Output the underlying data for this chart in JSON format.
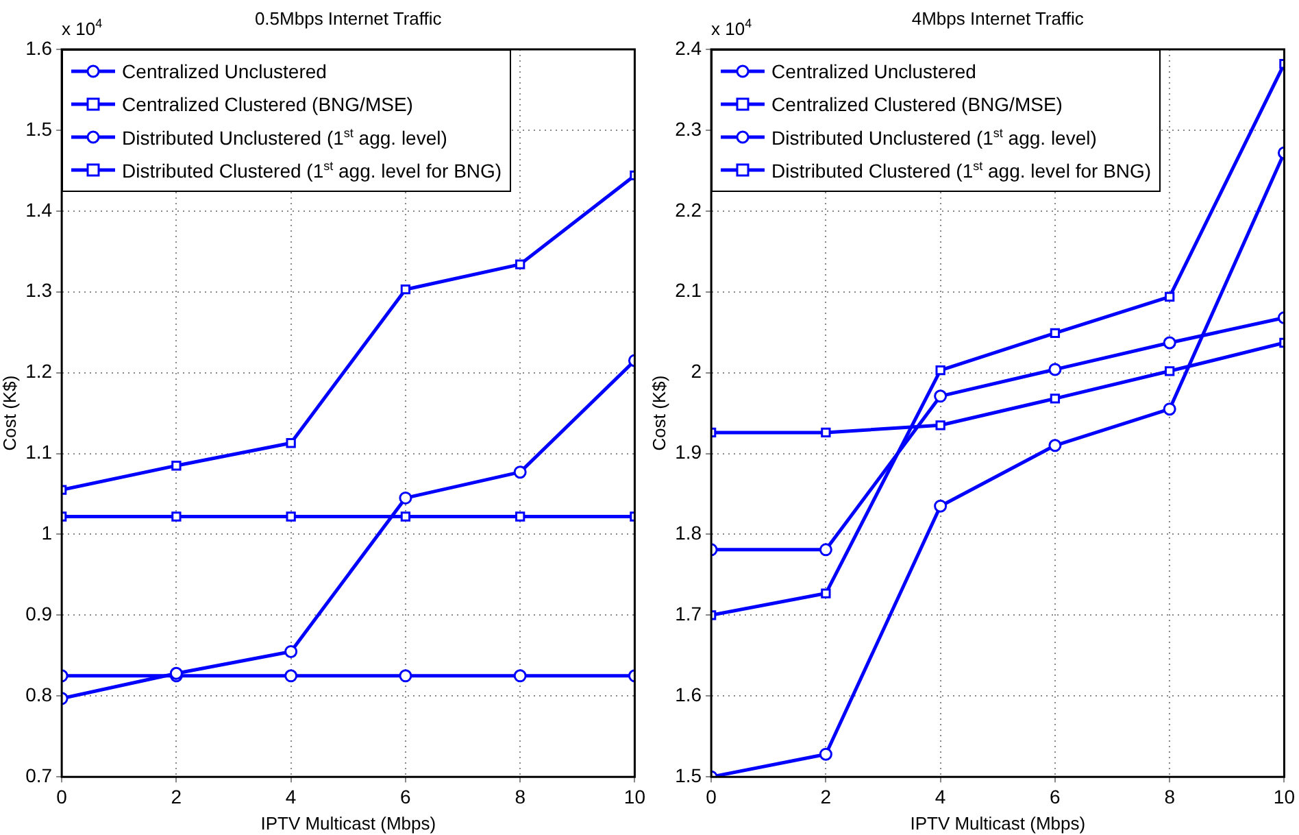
{
  "chart_data": [
    {
      "type": "line",
      "title": "0.5Mbps Internet Traffic",
      "xlabel": "IPTV Multicast (Mbps)",
      "ylabel": "Cost (K$)",
      "annotations": [
        "x 10$^{4}$"
      ],
      "x": [
        0,
        2,
        4,
        6,
        8,
        10
      ],
      "xlim": [
        0,
        10
      ],
      "xticks": [
        0,
        2,
        4,
        6,
        8,
        10
      ],
      "ylim": [
        0.7,
        1.6
      ],
      "yticks": [
        0.7,
        0.8,
        0.9,
        1,
        1.1,
        1.2,
        1.3,
        1.4,
        1.5,
        1.6
      ],
      "grid": true,
      "legend": "top left",
      "line_style": "solid",
      "series": [
        {
          "name": "Centralized Unclustered",
          "color": "#0000ff",
          "marker": "circle",
          "values": [
            0.797,
            0.828,
            0.855,
            1.045,
            1.077,
            1.215
          ]
        },
        {
          "name": "Centralized Clustered (BNG/MSE)",
          "color": "#0000ff",
          "marker": "square",
          "values": [
            1.055,
            1.085,
            1.113,
            1.303,
            1.334,
            1.444
          ]
        },
        {
          "name": "Distributed Unclustered (1$^{st}$ agg. level)",
          "color": "#0000ff",
          "marker": "circle",
          "values": [
            0.825,
            0.825,
            0.825,
            0.825,
            0.825,
            0.825
          ]
        },
        {
          "name": "Distributed Clustered (1$^{st}$ agg. level for BNG)",
          "color": "#0000ff",
          "marker": "square",
          "values": [
            1.022,
            1.022,
            1.022,
            1.022,
            1.022,
            1.022
          ]
        }
      ]
    },
    {
      "type": "line",
      "title": "4Mbps Internet Traffic",
      "xlabel": "IPTV Multicast (Mbps)",
      "ylabel": "Cost (K$)",
      "annotations": [
        "x 10$^{4}$"
      ],
      "x": [
        0,
        2,
        4,
        6,
        8,
        10
      ],
      "xlim": [
        0,
        10
      ],
      "xticks": [
        0,
        2,
        4,
        6,
        8,
        10
      ],
      "ylim": [
        1.5,
        2.4
      ],
      "yticks": [
        1.5,
        1.6,
        1.7,
        1.8,
        1.9,
        2,
        2.1,
        2.2,
        2.3,
        2.4
      ],
      "grid": true,
      "legend": "top left",
      "line_style": "solid",
      "series": [
        {
          "name": "Centralized Unclustered",
          "color": "#0000ff",
          "marker": "circle",
          "values": [
            1.5,
            1.528,
            1.835,
            1.91,
            1.955,
            2.272
          ]
        },
        {
          "name": "Centralized Clustered (BNG/MSE)",
          "color": "#0000ff",
          "marker": "square",
          "values": [
            1.7,
            1.727,
            2.003,
            2.049,
            2.094,
            2.382
          ]
        },
        {
          "name": "Distributed Unclustered (1$^{st}$ agg. level)",
          "color": "#0000ff",
          "marker": "circle",
          "values": [
            1.781,
            1.781,
            1.971,
            2.004,
            2.037,
            2.068
          ]
        },
        {
          "name": "Distributed Clustered (1$^{st}$ agg. level for BNG)",
          "color": "#0000ff",
          "marker": "square",
          "values": [
            1.926,
            1.926,
            1.935,
            1.968,
            2.002,
            2.037
          ]
        }
      ]
    }
  ]
}
